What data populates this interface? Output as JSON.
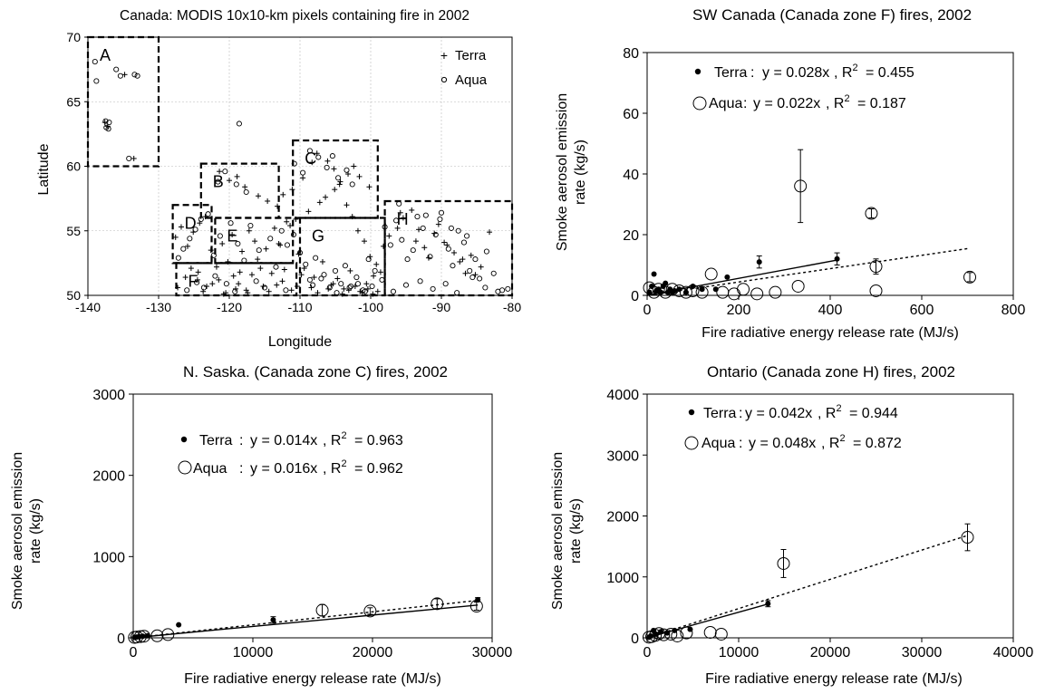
{
  "chart_data": [
    {
      "type": "scatter",
      "title": "Canada: MODIS 10x10-km pixels containing fire in 2002",
      "xlabel": "Longitude",
      "ylabel": "Latitude",
      "xlim": [
        -140,
        -80
      ],
      "ylim": [
        50,
        70
      ],
      "xticks": [
        -140,
        -130,
        -120,
        -110,
        -100,
        -90,
        -80
      ],
      "yticks": [
        50,
        55,
        60,
        65,
        70
      ],
      "xtick_labels": [
        "-140",
        "-130",
        "-120",
        "-110",
        "-100",
        "-90",
        "-80"
      ],
      "ytick_labels": [
        "50",
        "55",
        "60",
        "65",
        "70"
      ],
      "grid": true,
      "legend_position": "top-right",
      "series": [
        {
          "name": "Terra",
          "marker": "plus",
          "x": [
            -137.6,
            -137.2,
            -134.8,
            -133.5,
            -124.5,
            -123.2,
            -121.8,
            -120.5,
            -119.4,
            -118.2,
            -117.6,
            -116.0,
            -114.8,
            -113.0,
            -112.2,
            -111.4,
            -110.6,
            -108.8,
            -107.2,
            -106.4,
            -105.1,
            -104.3,
            -103.4,
            -102.6,
            -101.8,
            -100.9,
            -100.1,
            -99.2,
            -98.6,
            -127.6,
            -126.8,
            -125.9,
            -125.1,
            -124.2,
            -123.4,
            -122.6,
            -121.0,
            -120.2,
            -119.6,
            -118.5,
            -117.2,
            -116.4,
            -115.6,
            -114.0,
            -113.6,
            -112.8,
            -111.9,
            -110.2,
            -109.4,
            -108.0,
            -106.8,
            -105.6,
            -104.7,
            -103.8,
            -102.9,
            -101.5,
            -100.6,
            -99.6,
            -98.2,
            -97.4,
            -96.2,
            -95.4,
            -94.2,
            -93.6,
            -92.4,
            -91.8,
            -90.4,
            -89.6,
            -88.2,
            -87.4,
            -86.6,
            -85.8,
            -84.4,
            -83.2,
            -127.3,
            -126.2,
            -125.4,
            -124.4,
            -123.7,
            -122.4,
            -121.5,
            -120.8,
            -119.1,
            -118.7,
            -117.4,
            -116.8,
            -115.2,
            -114.4,
            -113.3,
            -112.5,
            -111.2,
            -110.4,
            -109.8,
            -108.4,
            -107.5,
            -106.0,
            -105.3,
            -104.0,
            -103.1,
            -102.2,
            -101.2,
            -100.4,
            -99.7,
            -99.0,
            -121.4,
            -120.0,
            -118.9,
            -117.8,
            -115.9,
            -114.6,
            -113.2,
            -112.4,
            -111.1,
            -109.6,
            -108.3,
            -107.6,
            -106.1,
            -105.2,
            -104.4,
            -103.2,
            -102.4,
            -101.6,
            -100.2,
            -95.8,
            -93.2,
            -91.0,
            -89.2,
            -87.0,
            -85.2
          ],
          "y": [
            63.4,
            63.1,
            67.1,
            60.6,
            51.2,
            50.7,
            52.2,
            50.2,
            51.5,
            53.4,
            50.4,
            52.8,
            53.6,
            54.0,
            52.0,
            55.4,
            55.9,
            56.5,
            57.2,
            57.6,
            58.2,
            58.8,
            57.0,
            56.1,
            55.0,
            54.2,
            53.0,
            52.4,
            51.8,
            54.5,
            55.3,
            53.8,
            54.9,
            55.6,
            56.1,
            53.5,
            54.0,
            52.6,
            54.7,
            51.8,
            55.0,
            54.2,
            52.1,
            51.7,
            55.2,
            53.9,
            55.7,
            53.2,
            52.1,
            51.4,
            52.6,
            50.8,
            51.3,
            50.5,
            51.9,
            50.3,
            50.9,
            51.5,
            53.8,
            54.6,
            55.2,
            56.0,
            56.6,
            54.2,
            53.7,
            52.9,
            55.5,
            54.1,
            53.3,
            52.6,
            51.7,
            53.1,
            52.2,
            54.9,
            50.6,
            51.4,
            52.1,
            51.8,
            50.3,
            50.9,
            51.2,
            50.1,
            50.5,
            50.9,
            50.2,
            51.6,
            50.7,
            50.3,
            50.8,
            51.1,
            50.4,
            50.7,
            51.6,
            50.6,
            50.2,
            50.5,
            50.9,
            50.1,
            50.4,
            50.7,
            50.2,
            50.5,
            50.1,
            50.3,
            59.6,
            58.9,
            59.2,
            58.4,
            57.7,
            57.3,
            56.9,
            57.8,
            58.2,
            59.1,
            60.3,
            61.0,
            60.4,
            59.8,
            58.6,
            59.4,
            60.0,
            59.2,
            58.4,
            56.4,
            55.1,
            54.8,
            53.9,
            52.8,
            51.6
          ]
        },
        {
          "name": "Aqua",
          "marker": "circle",
          "x": [
            -139.0,
            -138.8,
            -137.5,
            -137.1,
            -136.0,
            -135.4,
            -133.4,
            -133.0,
            -134.2,
            -118.6,
            -137.4,
            -137.0,
            -127.2,
            -126.5,
            -125.6,
            -124.8,
            -124.0,
            -123.0,
            -122.2,
            -121.3,
            -119.8,
            -118.8,
            -117.9,
            -117.0,
            -115.8,
            -114.2,
            -113.4,
            -112.6,
            -111.8,
            -110.9,
            -110.0,
            -109.2,
            -108.6,
            -107.8,
            -106.6,
            -105.8,
            -105.0,
            -104.2,
            -103.6,
            -102.8,
            -102.0,
            -101.1,
            -100.3,
            -99.4,
            -98.0,
            -97.2,
            -96.4,
            -95.6,
            -94.8,
            -94.0,
            -93.4,
            -92.6,
            -91.6,
            -90.8,
            -90.0,
            -89.0,
            -88.4,
            -87.6,
            -86.8,
            -86.0,
            -85.2,
            -84.6,
            -83.6,
            -82.6,
            -81.4,
            -80.6,
            -126.0,
            -124.6,
            -123.6,
            -122.0,
            -120.4,
            -119.2,
            -116.2,
            -115.0,
            -112.0,
            -108.2,
            -107.0,
            -104.8,
            -103.0,
            -101.8,
            -100.8,
            -99.8,
            -98.4,
            -96.8,
            -95.0,
            -93.0,
            -91.2,
            -89.4,
            -87.8,
            -85.6,
            -83.8,
            -82.0,
            -121.6,
            -120.6,
            -119.0,
            -117.6,
            -110.8,
            -109.6,
            -108.6,
            -107.4,
            -106.2,
            -105.4,
            -104.6,
            -103.4,
            -102.6,
            -96.0,
            -92.2,
            -90.2,
            -88.6,
            -86.4
          ],
          "y": [
            68.1,
            66.6,
            63.5,
            62.9,
            67.5,
            67.0,
            67.1,
            67.0,
            60.6,
            63.3,
            63.0,
            63.4,
            52.9,
            53.6,
            54.4,
            55.1,
            55.9,
            56.3,
            53.1,
            54.6,
            55.6,
            54.0,
            52.7,
            55.4,
            53.5,
            54.4,
            52.2,
            55.0,
            53.9,
            54.7,
            53.3,
            52.4,
            51.2,
            52.9,
            51.6,
            50.6,
            51.9,
            50.9,
            52.3,
            50.7,
            51.4,
            50.4,
            52.8,
            51.9,
            55.3,
            53.9,
            55.8,
            54.3,
            52.8,
            53.5,
            56.1,
            55.2,
            53.0,
            54.7,
            56.4,
            53.6,
            52.3,
            55.0,
            54.1,
            51.9,
            52.8,
            51.3,
            53.4,
            51.7,
            50.4,
            50.5,
            50.4,
            51.0,
            50.6,
            51.5,
            50.9,
            50.3,
            51.1,
            50.6,
            50.4,
            50.8,
            51.3,
            50.2,
            50.6,
            50.9,
            50.3,
            50.7,
            51.2,
            50.3,
            50.8,
            51.1,
            50.5,
            50.9,
            50.2,
            51.4,
            50.6,
            50.3,
            58.8,
            59.6,
            58.6,
            58.0,
            60.2,
            59.5,
            61.2,
            60.7,
            59.9,
            60.8,
            59.1,
            59.7,
            58.6,
            57.1,
            56.2,
            55.9,
            55.2,
            54.6
          ]
        }
      ],
      "zones": [
        {
          "label": "A",
          "x": [
            -140,
            -130
          ],
          "y": [
            60,
            70
          ]
        },
        {
          "label": "B",
          "x": [
            -124,
            -113
          ],
          "y": [
            56,
            60.2
          ]
        },
        {
          "label": "C",
          "x": [
            -111,
            -99
          ],
          "y": [
            56,
            62
          ]
        },
        {
          "label": "D",
          "x": [
            -128,
            -122.5
          ],
          "y": [
            52.5,
            57
          ]
        },
        {
          "label": "E",
          "x": [
            -122,
            -111
          ],
          "y": [
            52.5,
            56
          ]
        },
        {
          "label": "F",
          "x": [
            -127.5,
            -110.5
          ],
          "y": [
            50,
            52.5
          ]
        },
        {
          "label": "G",
          "x": [
            -110,
            -98
          ],
          "y": [
            50,
            56
          ]
        },
        {
          "label": "H",
          "x": [
            -98,
            -80
          ],
          "y": [
            50,
            57.3
          ]
        }
      ]
    },
    {
      "type": "scatter",
      "title": "SW Canada (Canada zone F) fires, 2002",
      "xlabel": "Fire radiative energy release rate (MJ/s)",
      "ylabel": "Smoke aerosol emission rate (kg/s)",
      "xlim": [
        0,
        800
      ],
      "ylim": [
        0,
        80
      ],
      "xticks": [
        0,
        200,
        400,
        600,
        800
      ],
      "yticks": [
        0,
        20,
        40,
        60,
        80
      ],
      "xtick_labels": [
        "0",
        "200",
        "400",
        "600",
        "800"
      ],
      "ytick_labels": [
        "0",
        "20",
        "40",
        "60",
        "80"
      ],
      "series": [
        {
          "name": "Terra",
          "equation": "y = 0.028x",
          "r2_prefix": "R",
          "r2_value": "= 0.455",
          "slope": 0.028,
          "x": [
            5,
            10,
            15,
            20,
            25,
            30,
            35,
            40,
            45,
            50,
            55,
            60,
            70,
            85,
            100,
            120,
            150,
            175,
            245,
            415
          ],
          "y": [
            1,
            3,
            7,
            1.5,
            2,
            1,
            3,
            4,
            1,
            2,
            1,
            1.5,
            2,
            1,
            3,
            2,
            2,
            6,
            11,
            12
          ],
          "err": [
            0,
            0,
            0,
            0,
            0,
            0,
            0,
            0,
            0,
            0,
            0,
            0,
            0,
            0,
            0,
            0,
            0,
            0,
            2,
            2
          ]
        },
        {
          "name": "Aqua",
          "equation": "y = 0.022x",
          "r2_prefix": "R",
          "r2_value": "= 0.187",
          "slope": 0.022,
          "x": [
            5,
            15,
            25,
            40,
            55,
            70,
            85,
            100,
            120,
            140,
            165,
            190,
            210,
            240,
            280,
            330,
            335,
            490,
            500,
            500,
            705
          ],
          "y": [
            2.5,
            1,
            2,
            1,
            2,
            1.5,
            1,
            1.5,
            1,
            7,
            1,
            0.5,
            2,
            0.5,
            1,
            3,
            36,
            27,
            9.5,
            1.5,
            6
          ],
          "err": [
            0,
            0,
            0,
            0,
            0,
            0,
            0,
            0,
            0,
            0,
            0,
            0,
            0,
            0,
            0,
            0,
            12,
            1.5,
            2.5,
            0,
            1.5
          ]
        }
      ]
    },
    {
      "type": "scatter",
      "title": "N. Saska. (Canada zone C) fires, 2002",
      "xlabel": "Fire radiative energy release rate (MJ/s)",
      "ylabel": "Smoke aerosol emission rate (kg/s)",
      "xlim": [
        0,
        30000
      ],
      "ylim": [
        0,
        3000
      ],
      "xticks": [
        0,
        10000,
        20000,
        30000
      ],
      "yticks": [
        0,
        1000,
        2000,
        3000
      ],
      "xtick_labels": [
        "0",
        "10000",
        "20000",
        "30000"
      ],
      "ytick_labels": [
        "0",
        "1000",
        "2000",
        "3000"
      ],
      "series": [
        {
          "name": "Terra",
          "equation": "y = 0.014x",
          "r2_prefix": "R",
          "r2_value": "= 0.963",
          "slope": 0.014,
          "x": [
            100,
            300,
            500,
            800,
            1200,
            3800,
            11700,
            28800
          ],
          "y": [
            5,
            10,
            15,
            20,
            25,
            160,
            220,
            470
          ],
          "err": [
            0,
            0,
            0,
            0,
            0,
            0,
            40,
            25
          ]
        },
        {
          "name": "Aqua",
          "equation": "y = 0.016x",
          "r2_prefix": "R",
          "r2_value": "= 0.962",
          "slope": 0.016,
          "x": [
            100,
            300,
            600,
            900,
            2000,
            2900,
            15800,
            19800,
            25400,
            28700
          ],
          "y": [
            5,
            10,
            15,
            20,
            25,
            40,
            340,
            330,
            420,
            390
          ],
          "err": [
            0,
            0,
            0,
            0,
            0,
            0,
            70,
            40,
            60,
            50
          ]
        }
      ]
    },
    {
      "type": "scatter",
      "title": "Ontario (Canada zone H) fires, 2002",
      "xlabel": "Fire radiative energy release rate (MJ/s)",
      "ylabel": "Smoke aerosol emission rate (kg/s)",
      "xlim": [
        0,
        40000
      ],
      "ylim": [
        0,
        4000
      ],
      "xticks": [
        0,
        10000,
        20000,
        30000,
        40000
      ],
      "yticks": [
        0,
        1000,
        2000,
        3000,
        4000
      ],
      "xtick_labels": [
        "0",
        "10000",
        "20000",
        "30000",
        "40000"
      ],
      "ytick_labels": [
        "0",
        "1000",
        "2000",
        "3000",
        "4000"
      ],
      "series": [
        {
          "name": "Terra",
          "equation": "y = 0.042x",
          "r2_prefix": "R",
          "r2_value": "= 0.944",
          "slope": 0.042,
          "x": [
            200,
            400,
            700,
            1000,
            1500,
            2200,
            3000,
            4700,
            13200
          ],
          "y": [
            10,
            30,
            120,
            60,
            100,
            80,
            120,
            140,
            560
          ],
          "err": [
            0,
            0,
            0,
            0,
            0,
            0,
            0,
            0,
            50
          ]
        },
        {
          "name": "Aqua",
          "equation": "y = 0.048x",
          "r2_prefix": "R",
          "r2_value": "= 0.872",
          "slope": 0.048,
          "x": [
            200,
            500,
            900,
            1300,
            1800,
            2600,
            3300,
            4300,
            6900,
            8100,
            14900,
            35000
          ],
          "y": [
            10,
            20,
            40,
            70,
            50,
            60,
            30,
            80,
            90,
            60,
            1220,
            1650
          ],
          "err": [
            0,
            0,
            0,
            0,
            0,
            0,
            0,
            0,
            0,
            0,
            230,
            220
          ]
        }
      ]
    }
  ]
}
